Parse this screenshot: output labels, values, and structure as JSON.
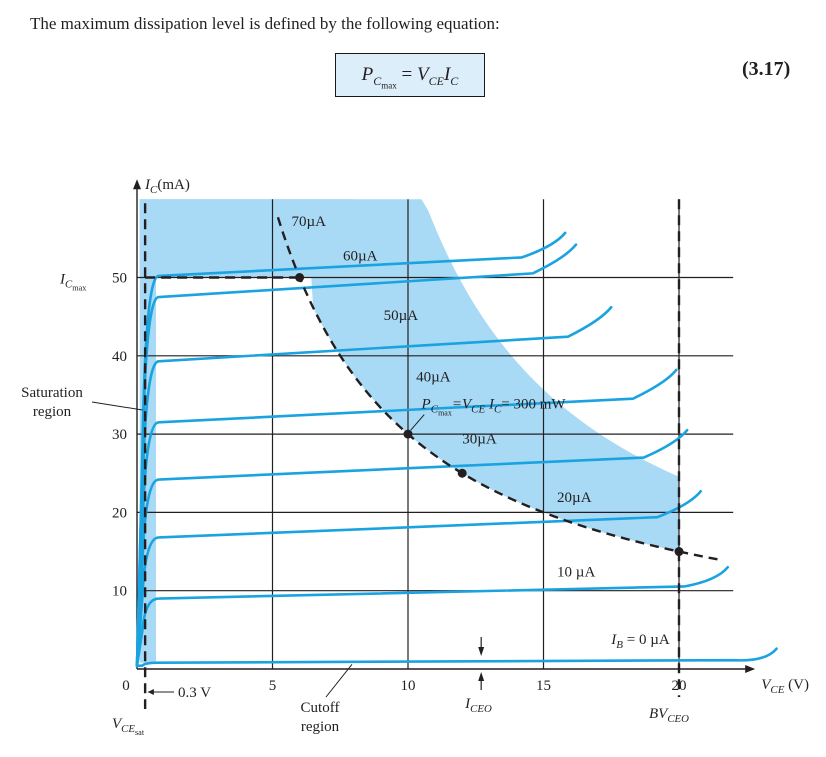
{
  "intro_text": "The maximum dissipation level is defined by the following equation:",
  "equation": {
    "lhs_main": "P",
    "lhs_sub": "C",
    "lhs_subsub": "max",
    "equals": "=",
    "rhs_v": "V",
    "rhs_v_sub": "CE",
    "rhs_i": "I",
    "rhs_i_sub": "C",
    "number": "(3.17)"
  },
  "chart_data": {
    "type": "line",
    "xlabel": {
      "main": "V",
      "sub": "CE",
      "unit": "(V)"
    },
    "ylabel": {
      "main": "I",
      "sub": "C",
      "unit": "(mA)"
    },
    "xlim": [
      0,
      22
    ],
    "ylim": [
      0,
      60
    ],
    "x_ticks": [
      "0",
      "5",
      "10",
      "15",
      "20"
    ],
    "y_ticks": [
      "10",
      "20",
      "30",
      "40",
      "50"
    ],
    "colors": {
      "curve": "#1aa3e0",
      "region": "#a8daf5",
      "axis": "#231f20"
    },
    "series": [
      {
        "name": "I_B = 0 µA",
        "label_main": "I",
        "label_sub": "B",
        "label_rest": " = 0 µA",
        "base": 0.8,
        "end": 1.4
      },
      {
        "name": "10 µA",
        "label": "10 µA",
        "base": 9.0,
        "end": 11.8
      },
      {
        "name": "20µA",
        "label": "20µA",
        "base": 16.8,
        "end": 21.5
      },
      {
        "name": "30µA",
        "label": "30µA",
        "base": 24.2,
        "end": 29.3
      },
      {
        "name": "40µA",
        "label": "40µA",
        "base": 31.5,
        "end": 37.0
      },
      {
        "name": "50µA",
        "label": "50µA",
        "base": 39.3,
        "end": 45.0
      },
      {
        "name": "60µA",
        "label": "60µA",
        "base": 47.5,
        "end": 53.0
      },
      {
        "name": "70µA",
        "label": "70µA",
        "base": 50.2,
        "end": 54.5
      }
    ],
    "power_curve": {
      "label_main": "P",
      "label_sub": "C",
      "label_subsub": "max",
      "label_rest": "=V",
      "label_v_sub": "CE",
      "label_i": " I",
      "label_i_sub": "C",
      "label_tail": "= 300 mW",
      "power_mw": 300,
      "points": [
        [
          6,
          50
        ],
        [
          10,
          30
        ],
        [
          12,
          25
        ],
        [
          15,
          20
        ],
        [
          20,
          15
        ]
      ]
    },
    "ic_max": {
      "main": "I",
      "sub": "C",
      "subsub": "max",
      "value": 50
    },
    "bv_ceo": {
      "main": "BV",
      "sub": "CEO",
      "value": 20
    },
    "vce_sat": {
      "main": "V",
      "sub": "CE",
      "subsub": "sat",
      "note": "0.3 V",
      "value": 0.3
    },
    "i_ceo": {
      "main": "I",
      "sub": "CEO",
      "value": 12.7
    },
    "annotations": {
      "saturation": [
        "Saturation",
        "region"
      ],
      "cutoff": [
        "Cutoff",
        "region"
      ]
    }
  }
}
